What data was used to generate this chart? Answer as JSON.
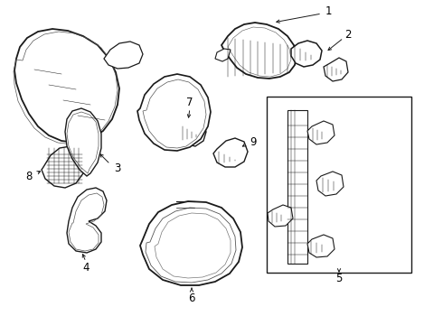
{
  "background_color": "#ffffff",
  "line_color": "#1a1a1a",
  "text_color": "#000000",
  "figsize": [
    4.9,
    3.6
  ],
  "dpi": 100,
  "lw_main": 1.0,
  "lw_inner": 0.5,
  "lw_hatch": 0.35
}
